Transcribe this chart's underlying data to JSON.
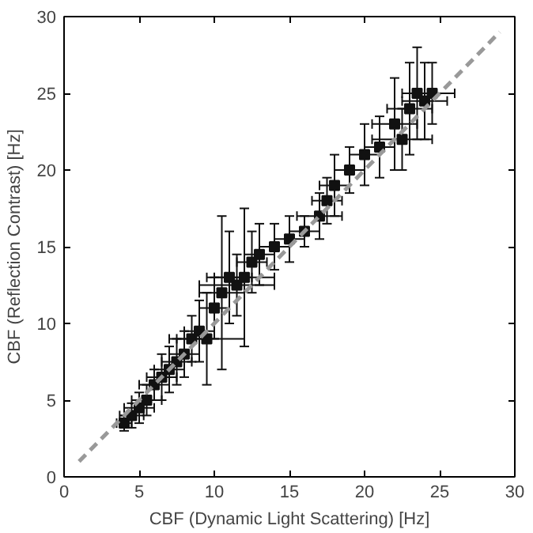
{
  "chart_data": {
    "type": "scatter",
    "xlabel": "CBF (Dynamic Light Scattering) [Hz]",
    "ylabel": "CBF (Reflection Contrast) [Hz]",
    "xlim": [
      0,
      30
    ],
    "ylim": [
      0,
      30
    ],
    "xticks": [
      0,
      5,
      10,
      15,
      20,
      25,
      30
    ],
    "yticks": [
      0,
      5,
      10,
      15,
      20,
      25,
      30
    ],
    "grid": false,
    "series": [
      {
        "color": "#111111",
        "marker": "square",
        "x": [
          4,
          4.5,
          5,
          5.5,
          6,
          6.5,
          7,
          7.5,
          8,
          8.5,
          9,
          9.5,
          10,
          10.5,
          11,
          11.5,
          12,
          12.5,
          13,
          14,
          15,
          16,
          17,
          17.5,
          18,
          19,
          20,
          21,
          22,
          22.5,
          23,
          23.5,
          24,
          24.5
        ],
        "values": [
          3.5,
          4,
          4.5,
          5,
          6,
          6.5,
          7,
          7.5,
          8,
          9,
          9.5,
          9,
          11,
          12,
          13,
          12.5,
          13,
          14,
          14.5,
          15,
          15.5,
          16,
          17,
          18,
          19,
          20,
          21,
          21.5,
          23,
          22,
          24,
          25,
          24.5,
          25
        ],
        "errors": [
          0.5,
          0.8,
          1,
          1,
          1,
          1.5,
          1.5,
          1.5,
          1.5,
          1.5,
          2,
          3,
          2,
          5,
          3,
          2,
          4.5,
          2,
          2,
          1.5,
          1.5,
          1,
          1.5,
          1.5,
          2,
          1.5,
          2,
          2,
          3,
          2,
          3,
          3,
          2.5,
          2
        ],
        "xerrors": [
          0.5,
          0.8,
          1,
          1,
          1,
          1,
          1,
          1,
          1,
          1,
          1,
          2.5,
          1,
          1.5,
          1.5,
          2.5,
          2,
          1,
          1,
          1,
          1,
          1,
          1.5,
          1,
          1,
          1,
          1,
          1,
          1.5,
          2,
          1.5,
          1,
          1.5,
          1.5
        ]
      },
      {
        "type": "line",
        "color": "#999999",
        "line_style": "dashed",
        "x": [
          1,
          29
        ],
        "values": [
          1,
          29
        ]
      }
    ]
  }
}
